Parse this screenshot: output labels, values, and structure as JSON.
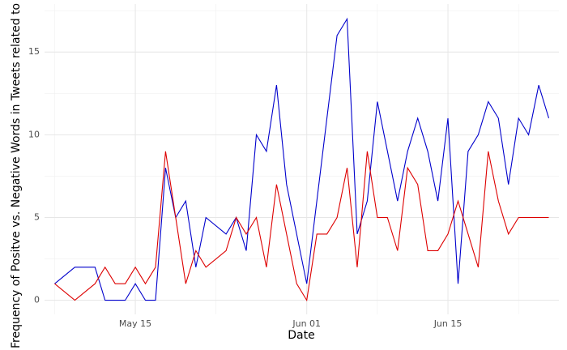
{
  "chart_data": {
    "type": "line",
    "x_label": "Date",
    "y_label": "Frequency of Positve vs. Negative Words in Tweets related to Cov",
    "series": [
      {
        "color": "#0000cc",
        "x": [
          "05-07",
          "05-09",
          "05-11",
          "05-12",
          "05-14",
          "05-15",
          "05-16",
          "05-17",
          "05-18",
          "05-19",
          "05-20",
          "05-21",
          "05-22",
          "05-24",
          "05-25",
          "05-26",
          "05-27",
          "05-28",
          "05-29",
          "05-30",
          "06-01",
          "06-03",
          "06-04",
          "06-05",
          "06-06",
          "06-07",
          "06-08",
          "06-10",
          "06-11",
          "06-12",
          "06-13",
          "06-14",
          "06-15",
          "06-16",
          "06-17",
          "06-18",
          "06-19",
          "06-20",
          "06-21",
          "06-22",
          "06-23",
          "06-24",
          "06-25"
        ],
        "values": [
          1,
          2,
          2,
          0,
          0,
          1,
          0,
          0,
          8,
          5,
          6,
          2,
          5,
          4,
          5,
          3,
          10,
          9,
          13,
          7,
          1,
          11,
          16,
          17,
          4,
          6,
          12,
          6,
          9,
          11,
          9,
          6,
          11,
          1,
          9,
          10,
          12,
          11,
          7,
          11,
          10,
          13,
          11
        ]
      },
      {
        "color": "#dd0000",
        "x": [
          "05-07",
          "05-09",
          "05-11",
          "05-12",
          "05-13",
          "05-14",
          "05-15",
          "05-16",
          "05-17",
          "05-18",
          "05-19",
          "05-20",
          "05-21",
          "05-22",
          "05-24",
          "05-25",
          "05-26",
          "05-27",
          "05-28",
          "05-29",
          "05-30",
          "05-31",
          "06-01",
          "06-02",
          "06-03",
          "06-04",
          "06-05",
          "06-06",
          "06-07",
          "06-08",
          "06-09",
          "06-10",
          "06-11",
          "06-12",
          "06-13",
          "06-14",
          "06-15",
          "06-16",
          "06-18",
          "06-19",
          "06-20",
          "06-21",
          "06-22",
          "06-25"
        ],
        "values": [
          1,
          0,
          1,
          2,
          1,
          1,
          2,
          1,
          2,
          9,
          5,
          1,
          3,
          2,
          3,
          5,
          4,
          5,
          2,
          7,
          4,
          1,
          0,
          4,
          4,
          5,
          8,
          2,
          9,
          5,
          5,
          3,
          8,
          7,
          3,
          3,
          4,
          6,
          2,
          9,
          6,
          4,
          5,
          5
        ]
      }
    ],
    "xlim": [
      "05-06",
      "06-26"
    ],
    "xticks": [
      {
        "value": "05-15",
        "label": "May 15"
      },
      {
        "value": "06-01",
        "label": "Jun 01"
      },
      {
        "value": "06-15",
        "label": "Jun 15"
      }
    ],
    "minor_xticks": [
      "05-07",
      "05-23",
      "06-08",
      "06-22"
    ],
    "ylim": [
      -0.85,
      17.9
    ],
    "yticks": [
      0,
      5,
      10,
      15
    ],
    "minor_yticks": [
      2.5,
      7.5,
      12.5,
      17.5
    ],
    "grid": true
  }
}
